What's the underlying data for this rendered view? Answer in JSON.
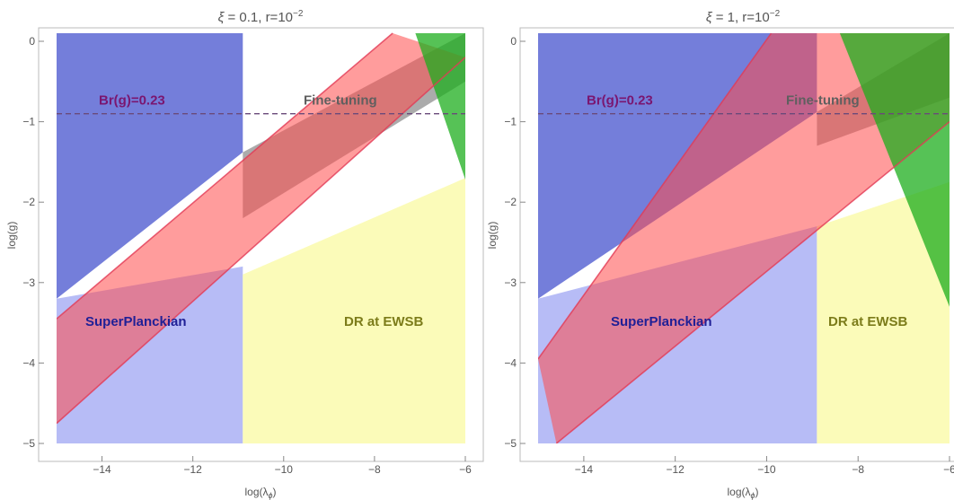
{
  "chart_data": [
    {
      "type": "area",
      "title": "ξ = 0.1, r=10⁻²",
      "title_parts": {
        "xi": "ξ",
        "rest": " = 0.1, r=10",
        "exp": "−2"
      },
      "xlabel": "log(λ_ϕ)",
      "xlabel_parts": {
        "main": "log(λ",
        "sub": "ϕ",
        "close": ")"
      },
      "ylabel": "log(g)",
      "xlim": [
        -15,
        -6
      ],
      "ylim": [
        -5,
        0.1
      ],
      "xticks": [
        -14,
        -12,
        -10,
        -8,
        -6
      ],
      "xtick_labels": [
        "−14",
        "−12",
        "−10",
        "−8",
        "−6"
      ],
      "yticks": [
        0,
        -1,
        -2,
        -3,
        -4,
        -5
      ],
      "ytick_labels": [
        "0",
        "−1",
        "−2",
        "−3",
        "−4",
        "−5"
      ],
      "br_line": {
        "y": -0.9,
        "label": "Br(g)=0.23"
      },
      "superplanckian_edge_x": -10.9,
      "regions": [
        {
          "name": "SuperPlanckian",
          "label": "SuperPlanckian",
          "color": "#6d77d8",
          "polygon": [
            [
              -15,
              -3.2
            ],
            [
              -10.9,
              -1.38
            ],
            [
              -10.9,
              0.1
            ],
            [
              -15,
              0.1
            ]
          ]
        },
        {
          "name": "SuperPlanckian-light",
          "label": "",
          "color": "#b3b8f5",
          "polygon": [
            [
              -15,
              -5
            ],
            [
              -10.9,
              -5
            ],
            [
              -10.9,
              -2.8
            ],
            [
              -15,
              -3.2
            ]
          ]
        },
        {
          "name": "Fine-tuning",
          "label": "Fine-tuning",
          "color": "#8f8f8f",
          "polygon": [
            [
              -10.9,
              -1.38
            ],
            [
              -6,
              0.1
            ],
            [
              -6,
              -0.5
            ],
            [
              -10.9,
              -2.2
            ]
          ]
        },
        {
          "name": "DR at EWSB",
          "label": "DR at EWSB",
          "color": "#fbfbb9",
          "polygon": [
            [
              -10.9,
              -2.9
            ],
            [
              -6,
              -1.7
            ],
            [
              -6,
              -5
            ],
            [
              -10.9,
              -5
            ]
          ]
        },
        {
          "name": "red-band",
          "label": "",
          "color": "#ff4a4a",
          "polygon": [
            [
              -15,
              -3.45
            ],
            [
              -7.6,
              0.1
            ],
            [
              -6,
              -0.2
            ],
            [
              -15,
              -4.75
            ]
          ]
        },
        {
          "name": "green-region",
          "label": "",
          "color": "#1eae1e",
          "polygon": [
            [
              -7.1,
              0.1
            ],
            [
              -6,
              0.1
            ],
            [
              -6,
              -1.72
            ]
          ]
        }
      ],
      "text_colors": {
        "SuperPlanckian": "#1f1f96",
        "DR at EWSB": "#7c7c1a",
        "Fine-tuning": "#5f5f5f",
        "Br": "#7a1670"
      }
    },
    {
      "type": "area",
      "title": "ξ = 1, r=10⁻²",
      "title_parts": {
        "xi": "ξ",
        "rest": " = 1, r=10",
        "exp": "−2"
      },
      "xlabel": "log(λ_ϕ)",
      "xlabel_parts": {
        "main": "log(λ",
        "sub": "ϕ",
        "close": ")"
      },
      "ylabel": "log(g)",
      "xlim": [
        -15,
        -6
      ],
      "ylim": [
        -5,
        0.1
      ],
      "xticks": [
        -14,
        -12,
        -10,
        -8,
        -6
      ],
      "xtick_labels": [
        "−14",
        "−12",
        "−10",
        "−8",
        "−6"
      ],
      "yticks": [
        0,
        -1,
        -2,
        -3,
        -4,
        -5
      ],
      "ytick_labels": [
        "0",
        "−1",
        "−2",
        "−3",
        "−4",
        "−5"
      ],
      "br_line": {
        "y": -0.9,
        "label": "Br(g)=0.23"
      },
      "superplanckian_edge_x": -8.9,
      "regions": [
        {
          "name": "SuperPlanckian",
          "label": "SuperPlanckian",
          "color": "#6d77d8",
          "polygon": [
            [
              -15,
              -3.2
            ],
            [
              -8.9,
              -0.88
            ],
            [
              -8.9,
              0.1
            ],
            [
              -15,
              0.1
            ]
          ]
        },
        {
          "name": "SuperPlanckian-light",
          "label": "",
          "color": "#b3b8f5",
          "polygon": [
            [
              -15,
              -5
            ],
            [
              -8.9,
              -5
            ],
            [
              -8.9,
              -2.3
            ],
            [
              -15,
              -3.2
            ]
          ]
        },
        {
          "name": "Fine-tuning",
          "label": "Fine-tuning",
          "color": "#8f8f8f",
          "polygon": [
            [
              -8.9,
              -0.88
            ],
            [
              -6,
              0.1
            ],
            [
              -6,
              -0.7
            ],
            [
              -8.9,
              -1.3
            ]
          ]
        },
        {
          "name": "DR at EWSB",
          "label": "DR at EWSB",
          "color": "#fbfbb9",
          "polygon": [
            [
              -8.9,
              -2.3
            ],
            [
              -6,
              -1.75
            ],
            [
              -6,
              -5
            ],
            [
              -8.9,
              -5
            ]
          ]
        },
        {
          "name": "red-band",
          "label": "",
          "color": "#ff4a4a",
          "polygon": [
            [
              -15,
              -3.95
            ],
            [
              -9.9,
              0.1
            ],
            [
              -6,
              0.1
            ],
            [
              -6,
              -1.0
            ],
            [
              -14.6,
              -5
            ]
          ]
        },
        {
          "name": "green-region",
          "label": "",
          "color": "#1eae1e",
          "polygon": [
            [
              -8.4,
              0.1
            ],
            [
              -6,
              0.1
            ],
            [
              -6,
              -3.3
            ]
          ]
        }
      ],
      "text_colors": {
        "SuperPlanckian": "#1f1f96",
        "DR at EWSB": "#7c7c1a",
        "Fine-tuning": "#5f5f5f",
        "Br": "#7a1670"
      }
    }
  ]
}
